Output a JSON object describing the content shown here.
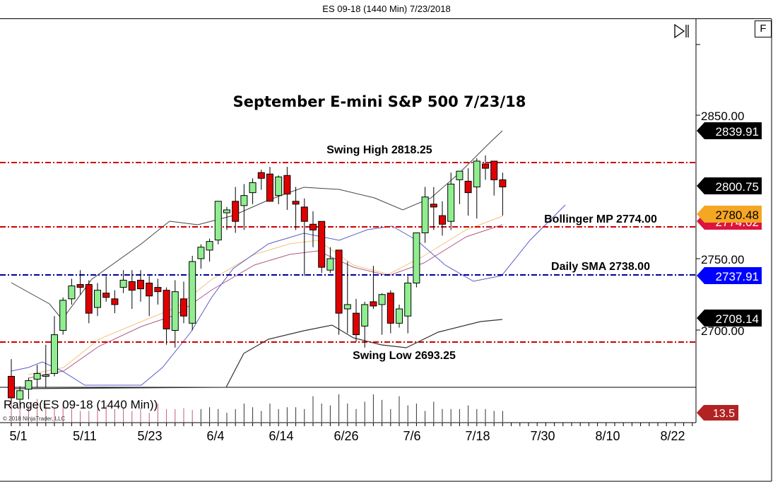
{
  "window": {
    "title": "ES 09-18 (1440 Min)  7/23/2018"
  },
  "controls": {
    "f_button": "F",
    "scroll_to_end_icon": "scroll-to-end-icon"
  },
  "chart_data": {
    "type": "candlestick",
    "title": "September E-mini S&P 500 7/23/18",
    "instrument": "ES 09-18 (1440 Min)",
    "xlabel": "",
    "ylabel": "",
    "x_tick_labels": [
      "5/1",
      "5/11",
      "5/23",
      "6/4",
      "6/14",
      "6/26",
      "7/6",
      "7/18",
      "7/30",
      "8/10",
      "8/22"
    ],
    "y_tick_labels": [
      "2850.00",
      "2750.00",
      "2700.00"
    ],
    "ylim": [
      2660,
      2880
    ],
    "grid": false,
    "annotations": [
      {
        "text": "Swing High 2818.25",
        "price": 2818.25,
        "color": "#cc0000",
        "style": "dash-dot"
      },
      {
        "text": "Bollinger MP 2774.00",
        "price": 2774.0,
        "color": "#cc0000",
        "style": "dash-dot"
      },
      {
        "text": "Daily SMA 2738.00",
        "price": 2738.0,
        "color": "#000099",
        "style": "dash-dot"
      },
      {
        "text": "Swing Low 2693.25",
        "price": 2693.25,
        "color": "#cc0000",
        "style": "dash-dot"
      }
    ],
    "price_markers": [
      {
        "value": "2839.91",
        "bg": "#000000",
        "fg": "#ffffff"
      },
      {
        "value": "2800.75",
        "bg": "#000000",
        "fg": "#ffffff"
      },
      {
        "value": "2780.48",
        "bg": "#f5a623",
        "fg": "#000000"
      },
      {
        "value": "2774.02",
        "bg": "#dc143c",
        "fg": "#ffffff"
      },
      {
        "value": "2737.91",
        "bg": "#0000ff",
        "fg": "#ffffff"
      },
      {
        "value": "2708.14",
        "bg": "#000000",
        "fg": "#ffffff"
      }
    ],
    "candles_ohlc_approx": [
      [
        2668,
        2680,
        2648,
        2653
      ],
      [
        2652,
        2661,
        2647,
        2658
      ],
      [
        2659,
        2667,
        2652,
        2665
      ],
      [
        2666,
        2676,
        2660,
        2670
      ],
      [
        2668,
        2690,
        2660,
        2669
      ],
      [
        2670,
        2710,
        2668,
        2697
      ],
      [
        2700,
        2723,
        2697,
        2721
      ],
      [
        2722,
        2736,
        2718,
        2731
      ],
      [
        2732,
        2742,
        2725,
        2730
      ],
      [
        2732,
        2735,
        2705,
        2712
      ],
      [
        2716,
        2733,
        2710,
        2728
      ],
      [
        2726,
        2738,
        2720,
        2723
      ],
      [
        2722,
        2728,
        2712,
        2718
      ],
      [
        2730,
        2742,
        2726,
        2735
      ],
      [
        2734,
        2742,
        2715,
        2728
      ],
      [
        2735,
        2742,
        2720,
        2729
      ],
      [
        2733,
        2738,
        2710,
        2724
      ],
      [
        2730,
        2736,
        2718,
        2727
      ],
      [
        2728,
        2730,
        2690,
        2701
      ],
      [
        2700,
        2735,
        2688,
        2727
      ],
      [
        2722,
        2734,
        2705,
        2710
      ],
      [
        2705,
        2752,
        2700,
        2748
      ],
      [
        2750,
        2760,
        2743,
        2758
      ],
      [
        2756,
        2764,
        2748,
        2762
      ],
      [
        2763,
        2790,
        2760,
        2790
      ],
      [
        2782,
        2786,
        2770,
        2784
      ],
      [
        2790,
        2800,
        2768,
        2776
      ],
      [
        2787,
        2802,
        2770,
        2794
      ],
      [
        2796,
        2806,
        2788,
        2803
      ],
      [
        2810,
        2812,
        2798,
        2806
      ],
      [
        2809,
        2814,
        2802,
        2790
      ],
      [
        2794,
        2808,
        2788,
        2807
      ],
      [
        2808,
        2814,
        2784,
        2795
      ],
      [
        2790,
        2800,
        2770,
        2788
      ],
      [
        2786,
        2792,
        2738,
        2776
      ],
      [
        2774,
        2783,
        2758,
        2770
      ],
      [
        2776,
        2776,
        2740,
        2744
      ],
      [
        2742,
        2758,
        2740,
        2750
      ],
      [
        2756,
        2756,
        2697,
        2712
      ],
      [
        2715,
        2748,
        2698,
        2718
      ],
      [
        2712,
        2722,
        2692,
        2697
      ],
      [
        2703,
        2720,
        2688,
        2718
      ],
      [
        2720,
        2745,
        2715,
        2717
      ],
      [
        2718,
        2726,
        2697,
        2725
      ],
      [
        2726,
        2728,
        2698,
        2705
      ],
      [
        2705,
        2718,
        2702,
        2715
      ],
      [
        2710,
        2738,
        2698,
        2733
      ],
      [
        2733,
        2765,
        2730,
        2768
      ],
      [
        2768,
        2800,
        2761,
        2793
      ],
      [
        2788,
        2800,
        2770,
        2786
      ],
      [
        2780,
        2790,
        2766,
        2774
      ],
      [
        2776,
        2810,
        2770,
        2802
      ],
      [
        2805,
        2810,
        2788,
        2811
      ],
      [
        2804,
        2813,
        2780,
        2796
      ],
      [
        2800,
        2820,
        2778,
        2818
      ],
      [
        2816,
        2822,
        2805,
        2813
      ],
      [
        2818,
        2818,
        2794,
        2805
      ],
      [
        2805,
        2810,
        2780,
        2800
      ],
      [
        2802,
        2806,
        2784,
        2795
      ]
    ],
    "indicator": {
      "name": "Range(ES 09-18 (1440 Min))",
      "last_value": "13.5",
      "marker_bg": "#b22222"
    },
    "copyright": "© 2018 NinjaTrader, LLC"
  }
}
